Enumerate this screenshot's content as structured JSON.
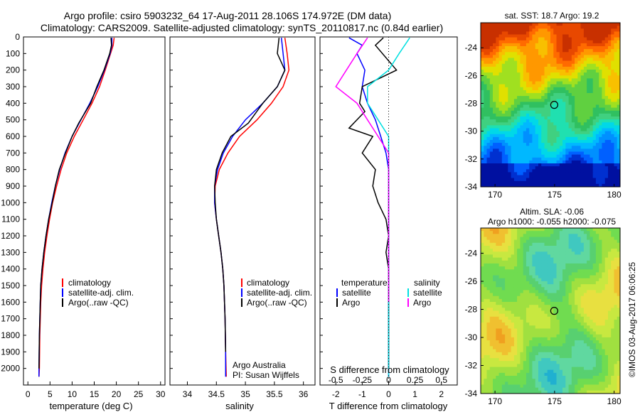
{
  "header": {
    "line1": "Argo profile: csiro 5903232_64 17-Aug-2011 28.106S 174.972E (DM data)",
    "line2": "Climatology: CARS2009. Satellite-adjusted climatology: synTS_20110817.nc (0.84d earlier)"
  },
  "credit": {
    "lab": "Argo Australia",
    "pi": "PI: Susan Wijffels",
    "watermark": "©IMOS 03-Aug-2017 06:06:25"
  },
  "colors": {
    "climatology": "#ff0000",
    "satellite": "#0000ff",
    "argo": "#000000",
    "s_satellite": "#00e0e0",
    "s_argo": "#ff00ff"
  },
  "chart_data": [
    {
      "type": "line",
      "panel": "temperature",
      "xlabel": "temperature (deg C)",
      "ylabel": "",
      "xlim": [
        -1,
        31
      ],
      "ylim": [
        2100,
        0
      ],
      "xticks": [
        0,
        5,
        10,
        15,
        20,
        25,
        30
      ],
      "yticks": [
        0,
        100,
        200,
        300,
        400,
        500,
        600,
        700,
        800,
        900,
        1000,
        1100,
        1200,
        1300,
        1400,
        1500,
        1600,
        1700,
        1800,
        1900,
        2000
      ],
      "legend": [
        "climatology",
        "satellite-adj. clim.",
        "Argo(..raw -QC)"
      ],
      "series": [
        {
          "name": "climatology",
          "color": "#ff0000",
          "x": [
            19.5,
            19.3,
            18.7,
            17.5,
            16.2,
            14.5,
            12.5,
            10.5,
            8.8,
            7.5,
            6.5,
            5.6,
            4.9,
            4.3,
            3.8,
            3.4,
            3.1,
            2.9,
            2.7,
            2.6,
            2.5
          ],
          "y": [
            5,
            50,
            100,
            200,
            300,
            400,
            500,
            600,
            700,
            800,
            900,
            1000,
            1100,
            1200,
            1300,
            1400,
            1500,
            1600,
            1800,
            2000,
            2050
          ]
        },
        {
          "name": "satellite-adj. clim.",
          "color": "#0000ff",
          "x": [
            19.0,
            19.0,
            18.6,
            17.3,
            15.8,
            14.0,
            12.0,
            10.0,
            8.4,
            7.2,
            6.2,
            5.4,
            4.7,
            4.1,
            3.6,
            3.2,
            2.9,
            2.8,
            2.6,
            2.5,
            2.5
          ],
          "y": [
            5,
            50,
            100,
            200,
            300,
            400,
            500,
            600,
            700,
            800,
            900,
            1000,
            1100,
            1200,
            1300,
            1400,
            1500,
            1600,
            1800,
            2000,
            2050
          ]
        },
        {
          "name": "Argo(..raw -QC)",
          "color": "#000000",
          "x": [
            18.8,
            18.9,
            18.5,
            17.2,
            15.6,
            14.2,
            11.5,
            10.0,
            8.5,
            7.1,
            6.2,
            5.5,
            4.7,
            4.1,
            3.6,
            3.2,
            2.9,
            2.8,
            2.6,
            2.5
          ],
          "y": [
            5,
            50,
            100,
            200,
            300,
            400,
            520,
            600,
            700,
            800,
            900,
            1000,
            1100,
            1200,
            1300,
            1400,
            1500,
            1600,
            1800,
            2000
          ]
        }
      ]
    },
    {
      "type": "line",
      "panel": "salinity",
      "xlabel": "salinity",
      "ylabel": "",
      "xlim": [
        33.7,
        36.2
      ],
      "ylim": [
        2100,
        0
      ],
      "xticks": [
        34,
        34.5,
        35,
        35.5,
        36
      ],
      "legend": [
        "climatology",
        "satellite-adj. clim.",
        "Argo(..raw -QC)"
      ],
      "series": [
        {
          "name": "climatology",
          "color": "#ff0000",
          "x": [
            35.68,
            35.72,
            35.75,
            35.65,
            35.45,
            35.2,
            34.9,
            34.7,
            34.55,
            34.48,
            34.47,
            34.5,
            34.54,
            34.58,
            34.61,
            34.63,
            34.64,
            34.65,
            34.66,
            34.67
          ],
          "y": [
            5,
            100,
            200,
            300,
            400,
            500,
            600,
            700,
            800,
            900,
            1000,
            1100,
            1200,
            1300,
            1400,
            1500,
            1600,
            1700,
            1900,
            2050
          ]
        },
        {
          "name": "satellite-adj. clim.",
          "color": "#0000ff",
          "x": [
            35.62,
            35.65,
            35.68,
            35.55,
            35.3,
            35.0,
            34.78,
            34.62,
            34.52,
            34.47,
            34.47,
            34.5,
            34.54,
            34.58,
            34.61,
            34.63,
            34.64,
            34.65,
            34.66,
            34.66
          ],
          "y": [
            5,
            100,
            200,
            300,
            400,
            500,
            600,
            700,
            800,
            900,
            1000,
            1100,
            1200,
            1300,
            1400,
            1500,
            1600,
            1700,
            1900,
            2050
          ]
        },
        {
          "name": "Argo(..raw -QC)",
          "color": "#000000",
          "x": [
            35.58,
            35.55,
            35.68,
            35.55,
            35.3,
            35.05,
            34.75,
            34.6,
            34.5,
            34.47,
            34.48,
            34.5,
            34.54,
            34.58,
            34.61,
            34.63,
            34.64,
            34.65,
            34.66
          ],
          "y": [
            5,
            100,
            200,
            300,
            400,
            520,
            600,
            700,
            800,
            900,
            1000,
            1100,
            1200,
            1300,
            1400,
            1500,
            1600,
            1700,
            1900
          ]
        }
      ]
    },
    {
      "type": "line",
      "panel": "difference",
      "xlabel": "T difference from climatology",
      "xlabel_top": "S difference from climatology",
      "xlim": [
        -2.6,
        2.6
      ],
      "ylim": [
        2100,
        0
      ],
      "xticks": [
        -2,
        -1,
        0,
        1,
        2
      ],
      "xticks_s": [
        -0.5,
        -0.25,
        0,
        0.25,
        0.5
      ],
      "legend_titles": [
        "temperature",
        "salinity"
      ],
      "legend": [
        "satellite",
        "Argo",
        "satellite",
        "Argo"
      ],
      "series": [
        {
          "name": "satellite",
          "group": "temperature",
          "color": "#0000ff",
          "x": [
            -1.5,
            -1.0,
            -1.2,
            -0.9,
            -1.0,
            -0.8,
            -0.5,
            -0.3,
            -0.1,
            0,
            0,
            0
          ],
          "y": [
            5,
            50,
            100,
            200,
            300,
            400,
            500,
            600,
            700,
            800,
            1200,
            2050
          ]
        },
        {
          "name": "Argo",
          "group": "temperature",
          "color": "#000000",
          "x": [
            -0.2,
            -0.5,
            0.3,
            -1.0,
            -1.1,
            -0.9,
            -1.5,
            -0.6,
            -1.0,
            -0.5,
            -0.6,
            -0.4,
            -0.1,
            0,
            -0.1,
            0,
            0,
            0,
            0,
            0
          ],
          "y": [
            5,
            50,
            200,
            300,
            400,
            450,
            550,
            600,
            700,
            800,
            900,
            1000,
            1100,
            1200,
            1300,
            1400,
            1500,
            1600,
            1800,
            2000
          ]
        },
        {
          "name": "satellite",
          "group": "salinity",
          "color": "#00e0e0",
          "x": [
            0.2,
            0.1,
            0,
            -0.2,
            -0.2,
            -0.1,
            0,
            0,
            0,
            0,
            0
          ],
          "y": [
            5,
            100,
            200,
            300,
            400,
            500,
            600,
            700,
            800,
            1200,
            2050
          ]
        },
        {
          "name": "Argo",
          "group": "salinity",
          "color": "#ff00ff",
          "x": [
            -0.2,
            -0.3,
            -0.4,
            -0.5,
            -0.3,
            -0.2,
            -0.1,
            0,
            0,
            0
          ],
          "y": [
            5,
            100,
            200,
            300,
            400,
            500,
            600,
            700,
            1100,
            1600
          ]
        }
      ]
    },
    {
      "type": "heatmap",
      "panel": "sst",
      "title": "sat. SST: 18.7 Argo: 19.2",
      "xlim": [
        168.8,
        180.5
      ],
      "ylim": [
        -34,
        -22.2
      ],
      "xticks": [
        170,
        175,
        180
      ],
      "yticks": [
        -24,
        -26,
        -28,
        -30,
        -32,
        -34
      ],
      "marker": {
        "lon": 174.972,
        "lat": -28.106
      },
      "values": {
        "sat_sst": 18.7,
        "argo": 19.2
      }
    },
    {
      "type": "heatmap",
      "panel": "sla",
      "title": "Altim. SLA: -0.06",
      "subtitle": "Argo h1000: -0.055 h2000: -0.075",
      "xlim": [
        168.8,
        180.5
      ],
      "ylim": [
        -34,
        -22.2
      ],
      "xticks": [
        170,
        175,
        180
      ],
      "yticks": [
        -24,
        -26,
        -28,
        -30,
        -32,
        -34
      ],
      "marker": {
        "lon": 174.972,
        "lat": -28.106
      }
    }
  ]
}
